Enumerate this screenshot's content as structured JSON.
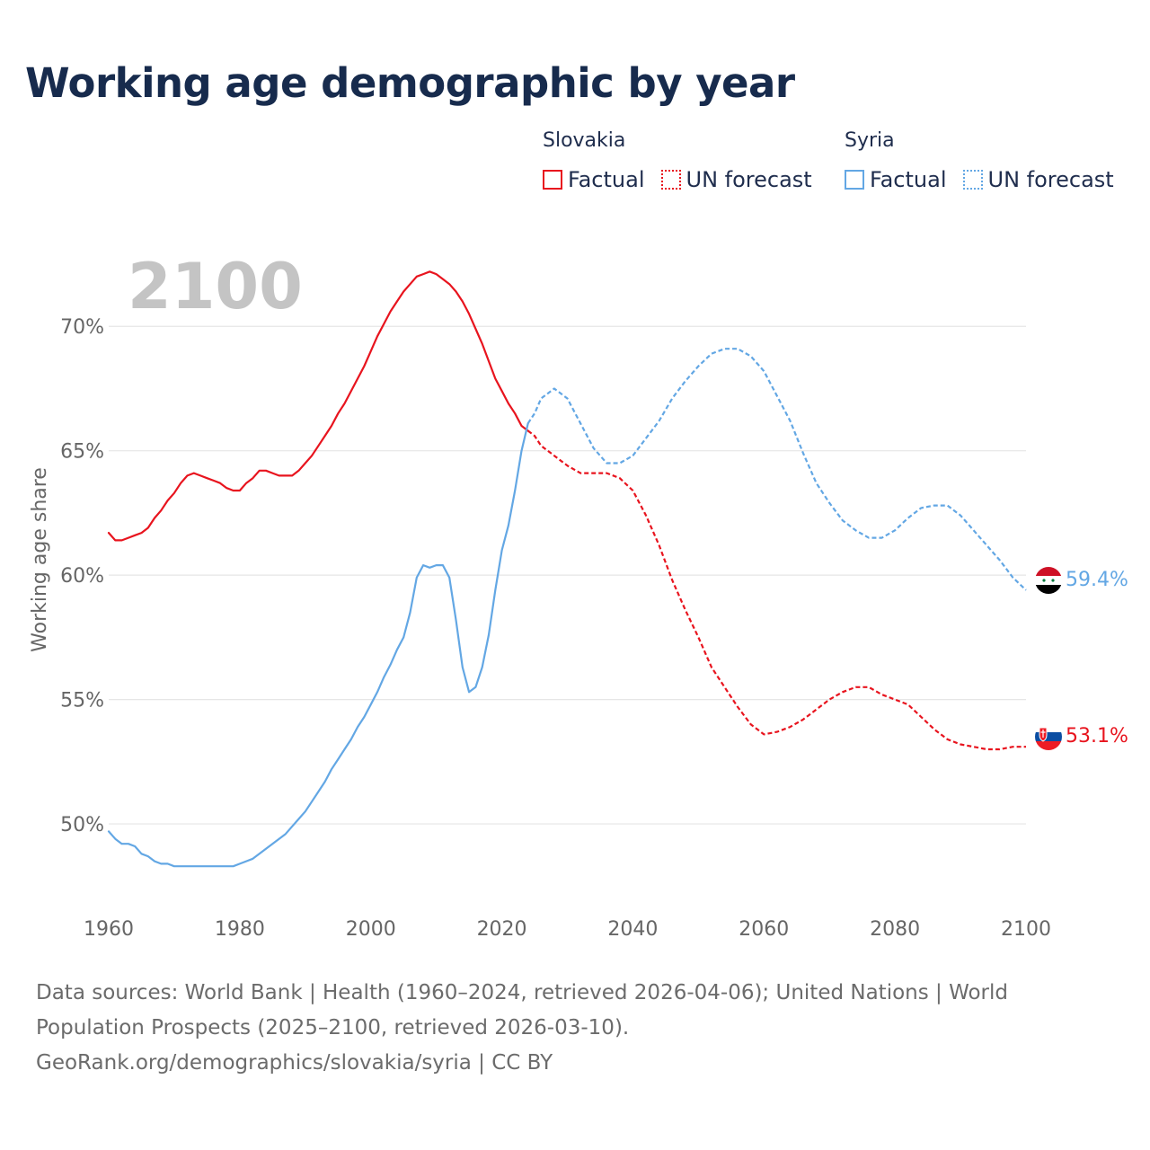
{
  "title": "Working age demographic by year",
  "legend": {
    "groups": [
      {
        "name": "Slovakia",
        "color": "#e8141e",
        "factual_label": "Factual",
        "forecast_label": "UN forecast"
      },
      {
        "name": "Syria",
        "color": "#63a7e4",
        "factual_label": "Factual",
        "forecast_label": "UN forecast"
      }
    ]
  },
  "source": {
    "line1": "Data sources: World Bank | Health (1960–2024, retrieved 2026-04-06); United Nations | World",
    "line2": "Population Prospects (2025–2100, retrieved 2026-03-10).",
    "line3": "GeoRank.org/demographics/slovakia/syria | CC BY"
  },
  "chart_data": {
    "type": "line",
    "title": "Working age demographic by year",
    "year_label": "2100",
    "xlabel": "",
    "ylabel": "Working age share",
    "xlim": [
      1960,
      2100
    ],
    "ylim": [
      46.5,
      72.5
    ],
    "xticks": [
      1960,
      1980,
      2000,
      2020,
      2040,
      2060,
      2080,
      2100
    ],
    "xtick_labels": [
      "1960",
      "1980",
      "2000",
      "2020",
      "2040",
      "2060",
      "2080",
      "2100"
    ],
    "yticks": [
      50,
      55,
      60,
      65,
      70
    ],
    "ytick_labels": [
      "50%",
      "55%",
      "60%",
      "65%",
      "70%"
    ],
    "grid": true,
    "series": [
      {
        "name": "Slovakia",
        "color": "#e8141e",
        "end_label": "53.1%",
        "factual": {
          "x": [
            1960,
            1961,
            1962,
            1963,
            1964,
            1965,
            1966,
            1967,
            1968,
            1969,
            1970,
            1971,
            1972,
            1973,
            1974,
            1975,
            1976,
            1977,
            1978,
            1979,
            1980,
            1981,
            1982,
            1983,
            1984,
            1985,
            1986,
            1987,
            1988,
            1989,
            1990,
            1991,
            1992,
            1993,
            1994,
            1995,
            1996,
            1997,
            1998,
            1999,
            2000,
            2001,
            2002,
            2003,
            2004,
            2005,
            2006,
            2007,
            2008,
            2009,
            2010,
            2011,
            2012,
            2013,
            2014,
            2015,
            2016,
            2017,
            2018,
            2019,
            2020,
            2021,
            2022,
            2023,
            2024
          ],
          "y": [
            61.7,
            61.4,
            61.4,
            61.5,
            61.6,
            61.7,
            61.9,
            62.3,
            62.6,
            63.0,
            63.3,
            63.7,
            64.0,
            64.1,
            64.0,
            63.9,
            63.8,
            63.7,
            63.5,
            63.4,
            63.4,
            63.7,
            63.9,
            64.2,
            64.2,
            64.1,
            64.0,
            64.0,
            64.0,
            64.2,
            64.5,
            64.8,
            65.2,
            65.6,
            66.0,
            66.5,
            66.9,
            67.4,
            67.9,
            68.4,
            69.0,
            69.6,
            70.1,
            70.6,
            71.0,
            71.4,
            71.7,
            72.0,
            72.1,
            72.2,
            72.1,
            71.9,
            71.7,
            71.4,
            71.0,
            70.5,
            69.9,
            69.3,
            68.6,
            67.9,
            67.4,
            66.9,
            66.5,
            66.0,
            65.8
          ]
        },
        "forecast": {
          "x": [
            2024,
            2025,
            2026,
            2028,
            2030,
            2032,
            2034,
            2036,
            2038,
            2040,
            2042,
            2044,
            2046,
            2048,
            2050,
            2052,
            2054,
            2056,
            2058,
            2060,
            2062,
            2064,
            2066,
            2068,
            2070,
            2072,
            2074,
            2076,
            2078,
            2080,
            2082,
            2084,
            2086,
            2088,
            2090,
            2092,
            2094,
            2096,
            2098,
            2100
          ],
          "y": [
            65.8,
            65.6,
            65.2,
            64.8,
            64.4,
            64.1,
            64.1,
            64.1,
            63.9,
            63.4,
            62.4,
            61.2,
            59.8,
            58.6,
            57.5,
            56.3,
            55.5,
            54.7,
            54.0,
            53.6,
            53.7,
            53.9,
            54.2,
            54.6,
            55.0,
            55.3,
            55.5,
            55.5,
            55.2,
            55.0,
            54.8,
            54.3,
            53.8,
            53.4,
            53.2,
            53.1,
            53.0,
            53.0,
            53.1,
            53.1
          ]
        }
      },
      {
        "name": "Syria",
        "color": "#63a7e4",
        "end_label": "59.4%",
        "factual": {
          "x": [
            1960,
            1961,
            1962,
            1963,
            1964,
            1965,
            1966,
            1967,
            1968,
            1969,
            1970,
            1971,
            1972,
            1973,
            1974,
            1975,
            1976,
            1977,
            1978,
            1979,
            1980,
            1981,
            1982,
            1983,
            1984,
            1985,
            1986,
            1987,
            1988,
            1989,
            1990,
            1991,
            1992,
            1993,
            1994,
            1995,
            1996,
            1997,
            1998,
            1999,
            2000,
            2001,
            2002,
            2003,
            2004,
            2005,
            2006,
            2007,
            2008,
            2009,
            2010,
            2011,
            2012,
            2013,
            2014,
            2015,
            2016,
            2017,
            2018,
            2019,
            2020,
            2021,
            2022,
            2023,
            2024
          ],
          "y": [
            49.7,
            49.4,
            49.2,
            49.2,
            49.1,
            48.8,
            48.7,
            48.5,
            48.4,
            48.4,
            48.3,
            48.3,
            48.3,
            48.3,
            48.3,
            48.3,
            48.3,
            48.3,
            48.3,
            48.3,
            48.4,
            48.5,
            48.6,
            48.8,
            49.0,
            49.2,
            49.4,
            49.6,
            49.9,
            50.2,
            50.5,
            50.9,
            51.3,
            51.7,
            52.2,
            52.6,
            53.0,
            53.4,
            53.9,
            54.3,
            54.8,
            55.3,
            55.9,
            56.4,
            57.0,
            57.5,
            58.5,
            59.9,
            60.4,
            60.3,
            60.4,
            60.4,
            59.9,
            58.2,
            56.3,
            55.3,
            55.5,
            56.3,
            57.6,
            59.4,
            61.0,
            62.0,
            63.4,
            65.0,
            66.1
          ]
        },
        "forecast": {
          "x": [
            2024,
            2025,
            2026,
            2028,
            2030,
            2032,
            2034,
            2036,
            2038,
            2040,
            2042,
            2044,
            2046,
            2048,
            2050,
            2052,
            2054,
            2056,
            2058,
            2060,
            2062,
            2064,
            2066,
            2068,
            2070,
            2072,
            2074,
            2076,
            2078,
            2080,
            2082,
            2084,
            2086,
            2088,
            2090,
            2092,
            2094,
            2096,
            2098,
            2100
          ],
          "y": [
            66.1,
            66.5,
            67.1,
            67.5,
            67.1,
            66.1,
            65.1,
            64.5,
            64.5,
            64.8,
            65.5,
            66.2,
            67.1,
            67.8,
            68.4,
            68.9,
            69.1,
            69.1,
            68.8,
            68.2,
            67.2,
            66.2,
            64.9,
            63.7,
            62.9,
            62.2,
            61.8,
            61.5,
            61.5,
            61.8,
            62.3,
            62.7,
            62.8,
            62.8,
            62.4,
            61.8,
            61.2,
            60.6,
            59.9,
            59.4
          ]
        }
      }
    ]
  }
}
